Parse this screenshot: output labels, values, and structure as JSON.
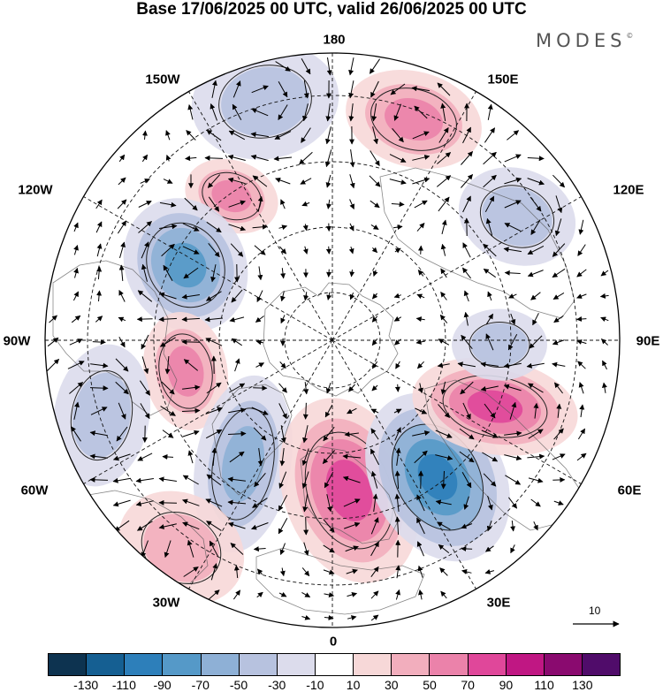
{
  "title": "Base 17/06/2025 00 UTC, valid 26/06/2025 00 UTC",
  "brand": "MODES",
  "brand_mark": "©",
  "longitude_labels": {
    "lon_180": "180",
    "lon_150w": "150W",
    "lon_150e": "150E",
    "lon_120w": "120W",
    "lon_120e": "120E",
    "lon_90w": "90W",
    "lon_90e": "90E",
    "lon_60w": "60W",
    "lon_60e": "60E",
    "lon_30w": "30W",
    "lon_30e": "30E",
    "lon_0": "0"
  },
  "vector_scale": {
    "label": "10"
  },
  "colorbar": {
    "colors": [
      "#0d3350",
      "#155f92",
      "#2d7fba",
      "#5599c8",
      "#8eb0d6",
      "#b7c2df",
      "#dcdcec",
      "#ffffff",
      "#f7d8d8",
      "#f2aebd",
      "#eb82aa",
      "#e0479a",
      "#c01783",
      "#8a0a6f",
      "#500c6a"
    ],
    "ticks": [
      "-130",
      "-110",
      "-90",
      "-70",
      "-50",
      "-30",
      "-10",
      "10",
      "30",
      "50",
      "70",
      "90",
      "110",
      "130"
    ]
  },
  "anomaly_centers": [
    {
      "name": "pos-150e",
      "sign": "positive",
      "level": 70
    },
    {
      "name": "neg-165w",
      "sign": "negative",
      "level": -50
    },
    {
      "name": "pos-135w",
      "sign": "positive",
      "level": 70
    },
    {
      "name": "neg-105w",
      "sign": "negative",
      "level": -90
    },
    {
      "name": "pos-80w",
      "sign": "positive",
      "level": 70
    },
    {
      "name": "neg-70w",
      "sign": "negative",
      "level": -50
    },
    {
      "name": "neg-45w",
      "sign": "negative",
      "level": -70
    },
    {
      "name": "pos-10e",
      "sign": "positive",
      "level": 90
    },
    {
      "name": "neg-40e",
      "sign": "negative",
      "level": -110
    },
    {
      "name": "pos-75e",
      "sign": "positive",
      "level": 90
    },
    {
      "name": "neg-95e",
      "sign": "negative",
      "level": -50
    },
    {
      "name": "neg-125e",
      "sign": "negative",
      "level": -50
    },
    {
      "name": "pos-35w",
      "sign": "positive",
      "level": 50
    }
  ]
}
